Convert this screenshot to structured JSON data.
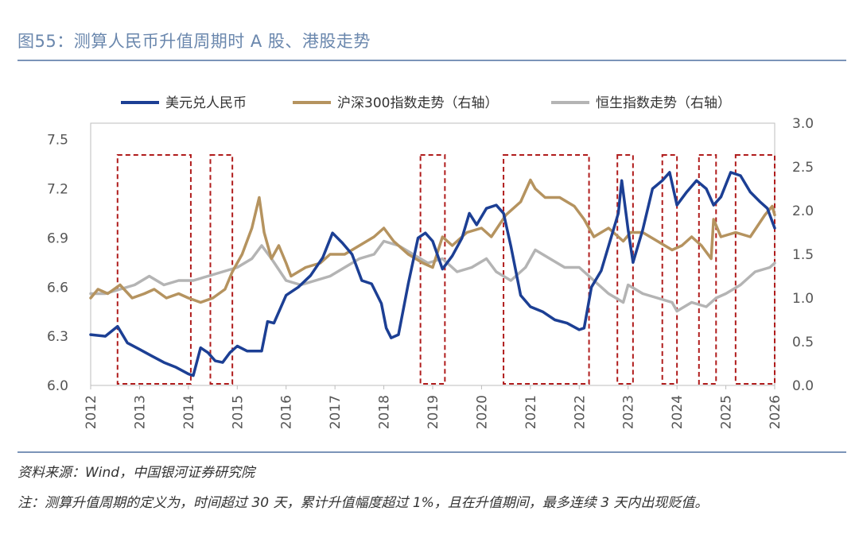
{
  "header": {
    "title": "图55：测算人民币升值周期时 A 股、港股走势"
  },
  "footer": {
    "source": "资料来源：Wind，中国银河证券研究院",
    "note": "注：测算升值周期的定义为，时间超过 30 天，累计升值幅度超过 1%，且在升值期间，最多连续 3 天内出现贬值。"
  },
  "colors": {
    "usdcny": "#1c3f94",
    "csi300": "#b5935f",
    "hsi": "#b4b4b4",
    "box": "#b01c1c"
  },
  "chart_data": {
    "type": "line",
    "title": "测算人民币升值周期时 A 股、港股走势",
    "x_ticks": [
      "2012",
      "2013",
      "2014",
      "2015",
      "2016",
      "2017",
      "2018",
      "2019",
      "2020",
      "2021",
      "2022",
      "2023",
      "2024",
      "2025",
      "2026"
    ],
    "x_range": [
      2012.0,
      2026.0
    ],
    "y_left": {
      "ticks": [
        "6.0",
        "6.3",
        "6.6",
        "6.9",
        "7.2",
        "7.5"
      ],
      "range": [
        6.0,
        7.6
      ]
    },
    "y_right": {
      "ticks": [
        "0.0",
        "0.5",
        "1.0",
        "1.5",
        "2.0",
        "2.5",
        "3.0"
      ],
      "range": [
        0.0,
        3.0
      ]
    },
    "series": [
      {
        "name": "美元兑人民币",
        "axis": "left",
        "x": [
          2012.0,
          2012.3,
          2012.55,
          2012.75,
          2013.0,
          2013.25,
          2013.5,
          2013.75,
          2014.0,
          2014.1,
          2014.25,
          2014.4,
          2014.55,
          2014.7,
          2014.85,
          2015.0,
          2015.2,
          2015.5,
          2015.62,
          2015.75,
          2016.0,
          2016.25,
          2016.5,
          2016.75,
          2016.95,
          2017.15,
          2017.35,
          2017.55,
          2017.75,
          2017.95,
          2018.05,
          2018.15,
          2018.3,
          2018.5,
          2018.7,
          2018.85,
          2019.0,
          2019.2,
          2019.4,
          2019.6,
          2019.75,
          2019.9,
          2020.1,
          2020.3,
          2020.45,
          2020.6,
          2020.8,
          2021.0,
          2021.25,
          2021.5,
          2021.75,
          2022.0,
          2022.1,
          2022.25,
          2022.45,
          2022.6,
          2022.8,
          2022.87,
          2023.0,
          2023.1,
          2023.3,
          2023.5,
          2023.7,
          2023.85,
          2024.0,
          2024.2,
          2024.4,
          2024.6,
          2024.75,
          2024.9,
          2025.1,
          2025.3,
          2025.5,
          2025.7,
          2025.85,
          2026.0
        ],
        "values": [
          6.31,
          6.3,
          6.36,
          6.26,
          6.22,
          6.18,
          6.14,
          6.11,
          6.07,
          6.06,
          6.23,
          6.2,
          6.15,
          6.14,
          6.2,
          6.24,
          6.21,
          6.21,
          6.39,
          6.38,
          6.55,
          6.6,
          6.67,
          6.78,
          6.93,
          6.87,
          6.8,
          6.64,
          6.62,
          6.5,
          6.35,
          6.29,
          6.31,
          6.62,
          6.9,
          6.93,
          6.88,
          6.71,
          6.79,
          6.9,
          7.05,
          6.98,
          7.08,
          7.1,
          7.05,
          6.85,
          6.55,
          6.48,
          6.45,
          6.4,
          6.38,
          6.34,
          6.35,
          6.6,
          6.7,
          6.85,
          7.05,
          7.25,
          6.95,
          6.75,
          6.95,
          7.2,
          7.25,
          7.3,
          7.1,
          7.18,
          7.25,
          7.2,
          7.1,
          7.15,
          7.3,
          7.28,
          7.18,
          7.12,
          7.08,
          6.96
        ]
      },
      {
        "name": "沪深300指数走势（右轴）",
        "axis": "right",
        "x": [
          2012.0,
          2012.15,
          2012.35,
          2012.6,
          2012.85,
          2013.1,
          2013.3,
          2013.55,
          2013.8,
          2014.0,
          2014.25,
          2014.5,
          2014.75,
          2014.9,
          2015.1,
          2015.3,
          2015.45,
          2015.55,
          2015.7,
          2015.85,
          2016.0,
          2016.1,
          2016.4,
          2016.7,
          2016.9,
          2017.2,
          2017.5,
          2017.8,
          2018.0,
          2018.2,
          2018.5,
          2018.8,
          2019.0,
          2019.2,
          2019.4,
          2019.7,
          2020.0,
          2020.2,
          2020.5,
          2020.8,
          2021.0,
          2021.1,
          2021.3,
          2021.6,
          2021.9,
          2022.1,
          2022.3,
          2022.6,
          2022.9,
          2023.05,
          2023.3,
          2023.6,
          2023.9,
          2024.1,
          2024.3,
          2024.5,
          2024.7,
          2024.75,
          2024.9,
          2025.2,
          2025.5,
          2025.8,
          2025.95,
          2026.0
        ],
        "values": [
          1.0,
          1.1,
          1.05,
          1.15,
          1.0,
          1.05,
          1.1,
          1.0,
          1.05,
          1.0,
          0.95,
          1.0,
          1.1,
          1.3,
          1.5,
          1.8,
          2.15,
          1.75,
          1.45,
          1.6,
          1.4,
          1.25,
          1.35,
          1.4,
          1.5,
          1.5,
          1.6,
          1.7,
          1.8,
          1.65,
          1.5,
          1.4,
          1.35,
          1.7,
          1.6,
          1.75,
          1.8,
          1.7,
          1.95,
          2.1,
          2.35,
          2.25,
          2.15,
          2.15,
          2.05,
          1.9,
          1.7,
          1.8,
          1.65,
          1.75,
          1.75,
          1.65,
          1.55,
          1.6,
          1.7,
          1.6,
          1.45,
          1.9,
          1.7,
          1.75,
          1.7,
          1.95,
          2.05,
          1.95
        ]
      },
      {
        "name": "恒生指数走势（右轴）",
        "axis": "right",
        "x": [
          2012.0,
          2012.3,
          2012.6,
          2012.9,
          2013.2,
          2013.5,
          2013.8,
          2014.1,
          2014.4,
          2014.7,
          2015.0,
          2015.3,
          2015.5,
          2015.7,
          2016.0,
          2016.3,
          2016.6,
          2016.9,
          2017.2,
          2017.5,
          2017.8,
          2018.0,
          2018.3,
          2018.6,
          2018.9,
          2019.2,
          2019.5,
          2019.8,
          2020.1,
          2020.3,
          2020.6,
          2020.9,
          2021.1,
          2021.4,
          2021.7,
          2022.0,
          2022.3,
          2022.6,
          2022.9,
          2023.0,
          2023.3,
          2023.6,
          2023.9,
          2024.0,
          2024.3,
          2024.6,
          2024.8,
          2025.0,
          2025.3,
          2025.6,
          2025.9,
          2026.0
        ],
        "values": [
          1.05,
          1.05,
          1.1,
          1.15,
          1.25,
          1.15,
          1.2,
          1.2,
          1.25,
          1.3,
          1.35,
          1.45,
          1.6,
          1.45,
          1.2,
          1.15,
          1.2,
          1.25,
          1.35,
          1.45,
          1.5,
          1.65,
          1.6,
          1.5,
          1.4,
          1.45,
          1.3,
          1.35,
          1.45,
          1.3,
          1.2,
          1.35,
          1.55,
          1.45,
          1.35,
          1.35,
          1.2,
          1.05,
          0.95,
          1.15,
          1.05,
          1.0,
          0.95,
          0.85,
          0.95,
          0.9,
          1.0,
          1.05,
          1.15,
          1.3,
          1.35,
          1.4
        ]
      }
    ],
    "highlight_periods": [
      [
        2012.55,
        2014.05
      ],
      [
        2014.45,
        2014.9
      ],
      [
        2018.75,
        2019.25
      ],
      [
        2020.45,
        2022.2
      ],
      [
        2022.78,
        2023.1
      ],
      [
        2023.7,
        2024.0
      ],
      [
        2024.45,
        2024.8
      ],
      [
        2025.2,
        2026.0
      ]
    ],
    "legend": {
      "position": "top",
      "entries": [
        "美元兑人民币",
        "沪深300指数走势（右轴）",
        "恒生指数走势（右轴）"
      ]
    }
  }
}
